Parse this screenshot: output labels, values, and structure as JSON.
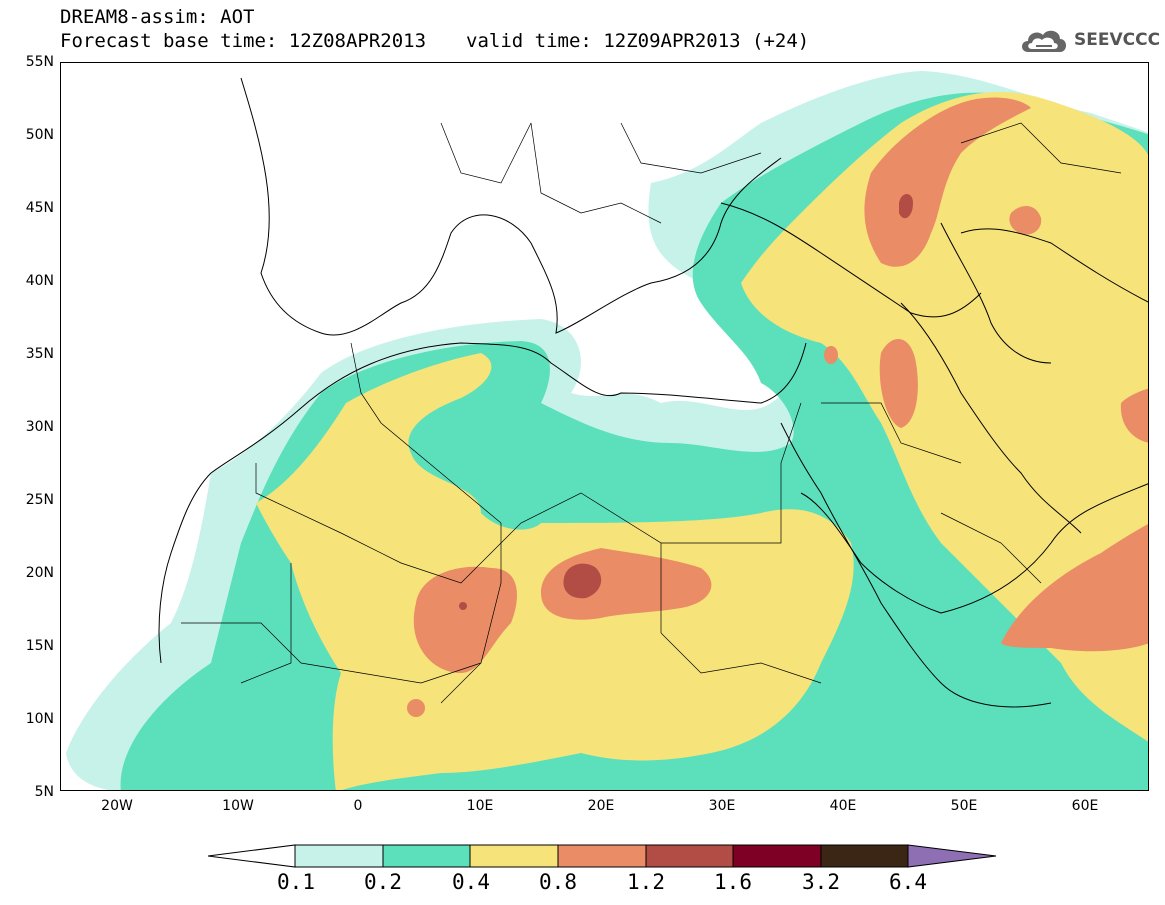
{
  "header": {
    "title": "DREAM8-assim: AOT",
    "base_time": "Forecast base time: 12Z08APR2013",
    "valid_time": "valid time: 12Z09APR2013 (+24)"
  },
  "logo": {
    "text": "SEEVCCC",
    "icon": "cloud-icon"
  },
  "map": {
    "lat_labels": [
      "55N",
      "50N",
      "45N",
      "40N",
      "35N",
      "30N",
      "25N",
      "20N",
      "15N",
      "10N",
      "5N"
    ],
    "lon_labels": [
      "20W",
      "10W",
      "0",
      "10E",
      "20E",
      "30E",
      "40E",
      "50E",
      "60E"
    ],
    "lat_range": [
      5,
      55
    ],
    "lon_range": [
      -25,
      65
    ],
    "field": "AOT"
  },
  "legend": {
    "labels": [
      "0.1",
      "0.2",
      "0.4",
      "0.8",
      "1.2",
      "1.6",
      "3.2",
      "6.4"
    ],
    "colors": [
      "#ffffff",
      "#c6f2ea",
      "#5be0bb",
      "#f6e37a",
      "#ea8c66",
      "#b24d45",
      "#7e0024",
      "#3b2616",
      "#8e6fb3"
    ]
  }
}
